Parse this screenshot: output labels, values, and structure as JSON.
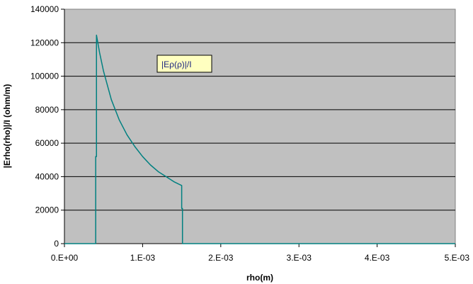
{
  "chart_data": {
    "type": "line",
    "title": "",
    "xlabel": "rho(m)",
    "ylabel": "|Erho(rho)|/I  (ohm/m)",
    "xlim": [
      0,
      0.005
    ],
    "ylim": [
      0,
      140000
    ],
    "x_ticks": [
      {
        "value": 0,
        "label": "0.E+00"
      },
      {
        "value": 0.001,
        "label": "1.E-03"
      },
      {
        "value": 0.002,
        "label": "2.E-03"
      },
      {
        "value": 0.003,
        "label": "3.E-03"
      },
      {
        "value": 0.004,
        "label": "4.E-03"
      },
      {
        "value": 0.005,
        "label": "5.E-03"
      }
    ],
    "y_ticks": [
      {
        "value": 0,
        "label": "0"
      },
      {
        "value": 20000,
        "label": "20000"
      },
      {
        "value": 40000,
        "label": "40000"
      },
      {
        "value": 60000,
        "label": "60000"
      },
      {
        "value": 80000,
        "label": "80000"
      },
      {
        "value": 100000,
        "label": "100000"
      },
      {
        "value": 120000,
        "label": "120000"
      },
      {
        "value": 140000,
        "label": "140000"
      }
    ],
    "grid": {
      "horizontal": true,
      "vertical": false
    },
    "plot_background": "#c0c0c0",
    "series": [
      {
        "name": "|Eρ(ρ)|/I",
        "color": "#008080",
        "x": [
          0,
          0.0004,
          0.0004,
          0.00041,
          0.00041,
          0.00045,
          0.0005,
          0.0006,
          0.0007,
          0.0008,
          0.0009,
          0.001,
          0.0011,
          0.0012,
          0.0013,
          0.0014,
          0.0015,
          0.0015,
          0.00151,
          0.00151,
          0.005
        ],
        "values": [
          0,
          0,
          52000,
          52000,
          124500,
          114000,
          103000,
          86000,
          74000,
          65000,
          58000,
          52000,
          47000,
          43000,
          40000,
          37000,
          34700,
          21000,
          21000,
          0,
          0
        ]
      }
    ],
    "legend": {
      "position": "inside-top-center",
      "entries": [
        "|Eρ(ρ)|/I"
      ],
      "background": "#ffffc0"
    }
  }
}
